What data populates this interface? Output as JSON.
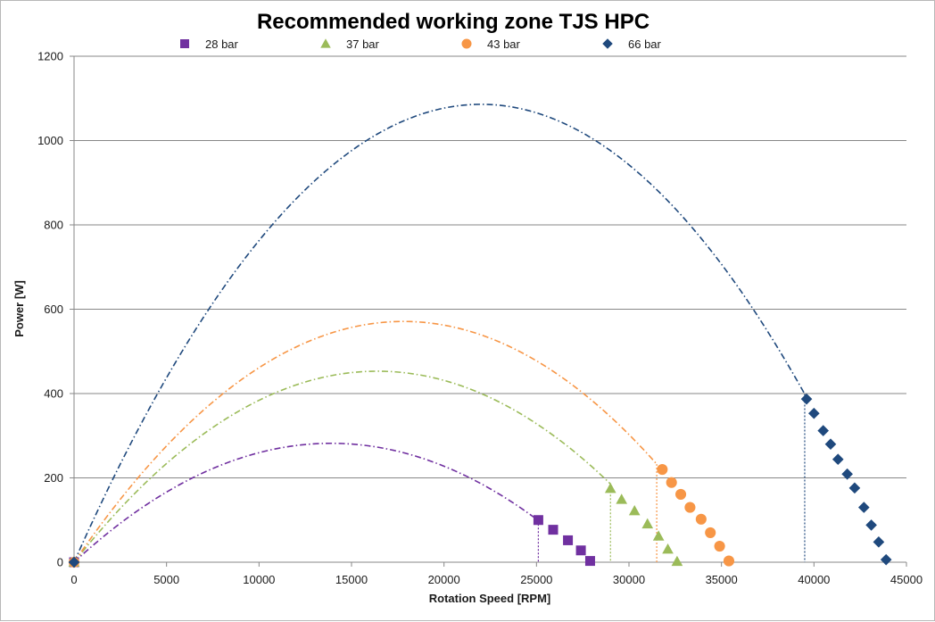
{
  "chart_data": {
    "type": "scatter",
    "title": "Recommended working zone TJS HPC",
    "xlabel": "Rotation Speed [RPM]",
    "ylabel": "Power [W]",
    "xlim": [
      0,
      45000
    ],
    "ylim": [
      0,
      1200
    ],
    "xticks": [
      0,
      5000,
      10000,
      15000,
      20000,
      25000,
      30000,
      35000,
      40000,
      45000
    ],
    "yticks": [
      0,
      200,
      400,
      600,
      800,
      1000,
      1200
    ],
    "xtick_labels": [
      "0",
      "5000",
      "10000",
      "15000",
      "20000",
      "25000",
      "30000",
      "35000",
      "40000",
      "45000"
    ],
    "ytick_labels": [
      "0",
      "200",
      "400",
      "600",
      "800",
      "1000",
      "1200"
    ],
    "grid": "horizontal",
    "legend_position": "top",
    "series": [
      {
        "name": "28 bar",
        "marker": "square",
        "color": "#7030a0",
        "curve_peak": [
          13900,
          282
        ],
        "curve_end": 28000,
        "cutoff_x": 25100,
        "points": [
          [
            0,
            0
          ],
          [
            25100,
            100
          ],
          [
            25900,
            77
          ],
          [
            26700,
            52
          ],
          [
            27400,
            28
          ],
          [
            27900,
            3
          ]
        ]
      },
      {
        "name": "37 bar",
        "marker": "triangle",
        "color": "#9bbb59",
        "curve_peak": [
          16400,
          453
        ],
        "curve_end": 32800,
        "cutoff_x": 29000,
        "points": [
          [
            0,
            0
          ],
          [
            29000,
            175
          ],
          [
            29600,
            149
          ],
          [
            30300,
            122
          ],
          [
            31000,
            91
          ],
          [
            31600,
            62
          ],
          [
            32100,
            31
          ],
          [
            32600,
            2
          ]
        ]
      },
      {
        "name": "43 bar",
        "marker": "circle",
        "color": "#f79646",
        "curve_peak": [
          17800,
          571
        ],
        "curve_end": 35600,
        "cutoff_x": 31500,
        "points": [
          [
            0,
            0
          ],
          [
            31800,
            220
          ],
          [
            32300,
            189
          ],
          [
            32800,
            161
          ],
          [
            33300,
            130
          ],
          [
            33900,
            102
          ],
          [
            34400,
            70
          ],
          [
            34900,
            38
          ],
          [
            35400,
            3
          ]
        ]
      },
      {
        "name": "66 bar",
        "marker": "diamond",
        "color": "#1f497d",
        "curve_peak": [
          22000,
          1086
        ],
        "curve_end": 44000,
        "cutoff_x": 39500,
        "points": [
          [
            0,
            0
          ],
          [
            39600,
            387
          ],
          [
            40000,
            353
          ],
          [
            40500,
            312
          ],
          [
            40900,
            280
          ],
          [
            41300,
            244
          ],
          [
            41800,
            209
          ],
          [
            42200,
            176
          ],
          [
            42700,
            130
          ],
          [
            43100,
            88
          ],
          [
            43500,
            48
          ],
          [
            43900,
            6
          ]
        ]
      }
    ]
  }
}
